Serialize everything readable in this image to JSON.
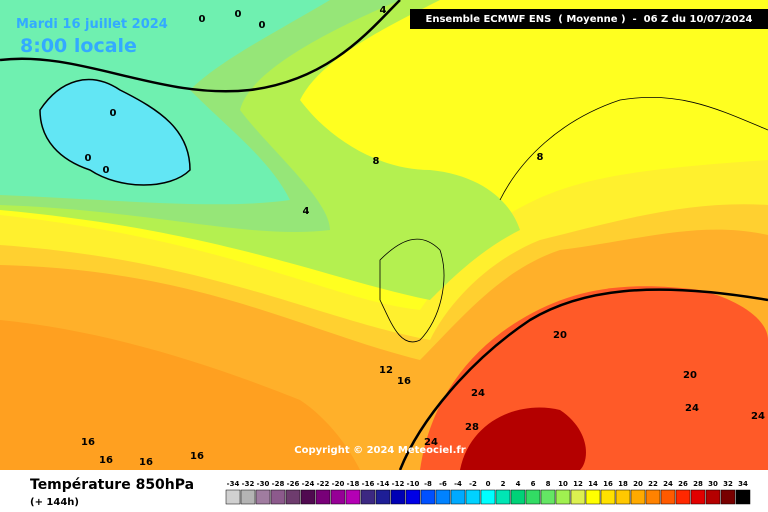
{
  "header": {
    "date": "Mardi 16 juillet 2024",
    "time": "8:00 locale",
    "model": "Ensemble ECMWF ENS  ( Moyenne )  -  06 Z du 10/07/2024"
  },
  "copyright": "Copyright © 2024 Meteociel.fr",
  "footer": {
    "title": "Température 850hPa",
    "lead": "(+ 144h)"
  },
  "legend": {
    "values": [
      -34,
      -32,
      -30,
      -28,
      -26,
      -24,
      -22,
      -20,
      -18,
      -16,
      -14,
      -12,
      -10,
      -8,
      -6,
      -4,
      -2,
      0,
      2,
      4,
      6,
      8,
      10,
      12,
      14,
      16,
      18,
      20,
      22,
      24,
      26,
      28,
      30,
      32,
      34
    ],
    "colors": [
      "#d0d0d0",
      "#b4b4b4",
      "#a07ca0",
      "#8c5a8c",
      "#6e3c6e",
      "#500a50",
      "#780078",
      "#960096",
      "#b400b4",
      "#3c2882",
      "#1e1e96",
      "#0000b4",
      "#0000e6",
      "#0050ff",
      "#0082ff",
      "#00aaff",
      "#00d2ff",
      "#00ffff",
      "#00e6b4",
      "#00d278",
      "#32dc64",
      "#64e664",
      "#a0f050",
      "#dcf050",
      "#ffff00",
      "#ffe100",
      "#ffc800",
      "#ffaa00",
      "#ff8200",
      "#ff5a00",
      "#ff2800",
      "#e10000",
      "#b40000",
      "#780000",
      "#000000"
    ]
  },
  "contour_labels": [
    0,
    0,
    0,
    4,
    0,
    0,
    0,
    8,
    4,
    8,
    20,
    20,
    12,
    16,
    24,
    24,
    28,
    24,
    16,
    16,
    16,
    16,
    24
  ]
}
